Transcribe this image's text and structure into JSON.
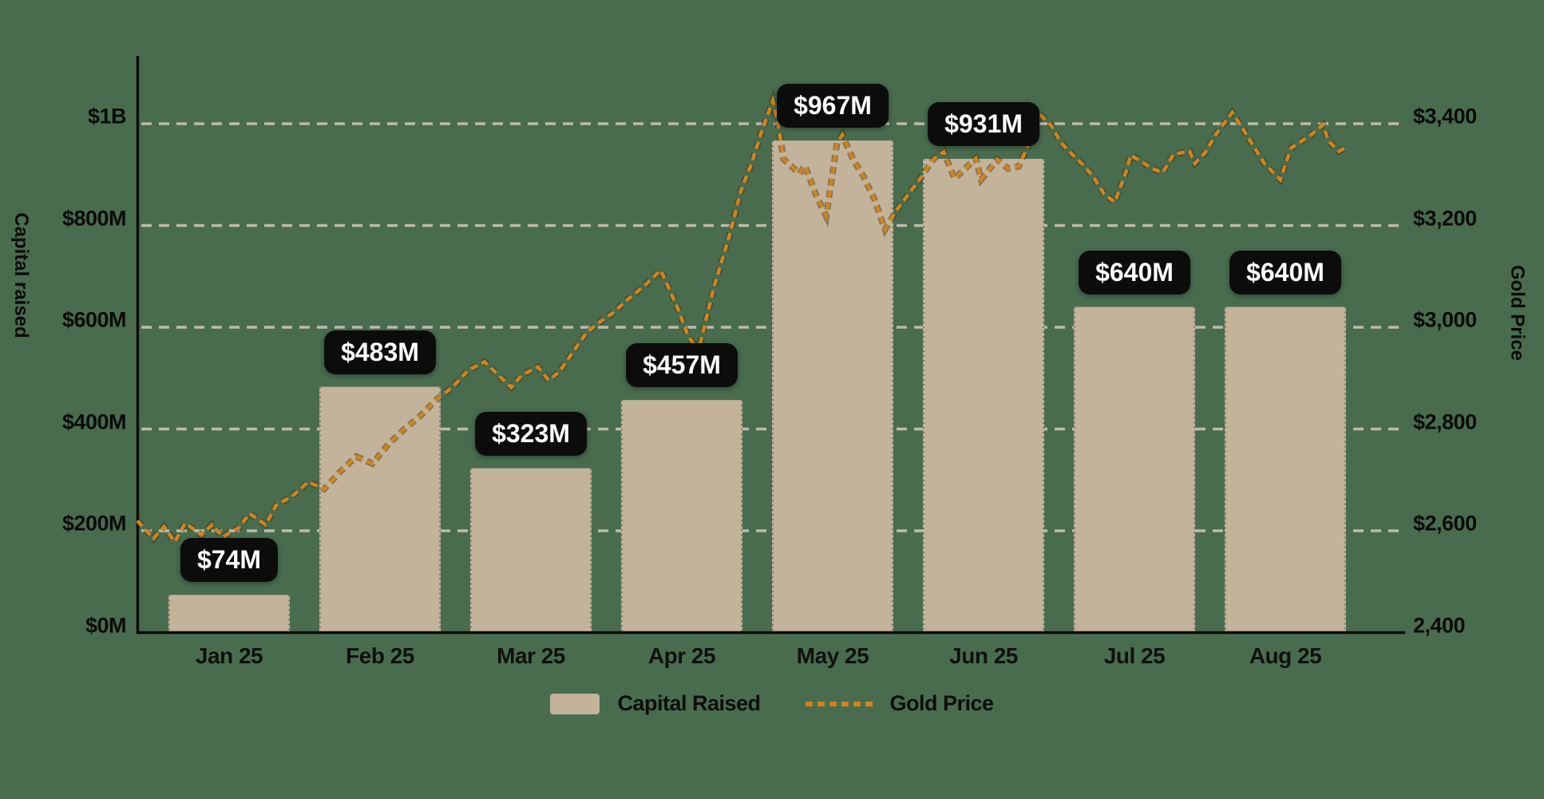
{
  "chart_data": {
    "type": "combo: bar + dotted line, dual y-axes",
    "months": [
      "Jan 25",
      "Feb 25",
      "Mar 25",
      "Apr 25",
      "May 25",
      "Jun 25",
      "Jul 25",
      "Aug 25"
    ],
    "series": [
      {
        "name": "Capital Raised",
        "kind": "bar",
        "axis": "left",
        "values_musd": [
          74,
          483,
          323,
          457,
          967,
          931,
          640,
          640
        ],
        "bar_labels": [
          "$74M",
          "$483M",
          "$323M",
          "$457M",
          "$967M",
          "$931M",
          "$640M",
          "$640M"
        ]
      },
      {
        "name": "Gold Price",
        "kind": "dotted-line",
        "axis": "right",
        "x_unit": "day index from Jan 1 (0-226)",
        "points": [
          [
            0,
            2620
          ],
          [
            3,
            2585
          ],
          [
            5,
            2608
          ],
          [
            7,
            2578
          ],
          [
            9,
            2615
          ],
          [
            12,
            2592
          ],
          [
            14,
            2612
          ],
          [
            16,
            2588
          ],
          [
            19,
            2606
          ],
          [
            21,
            2634
          ],
          [
            24,
            2612
          ],
          [
            26,
            2650
          ],
          [
            29,
            2668
          ],
          [
            32,
            2696
          ],
          [
            35,
            2682
          ],
          [
            38,
            2716
          ],
          [
            41,
            2746
          ],
          [
            44,
            2732
          ],
          [
            47,
            2770
          ],
          [
            50,
            2800
          ],
          [
            53,
            2826
          ],
          [
            56,
            2858
          ],
          [
            59,
            2882
          ],
          [
            62,
            2916
          ],
          [
            65,
            2932
          ],
          [
            67,
            2912
          ],
          [
            70,
            2882
          ],
          [
            72,
            2906
          ],
          [
            75,
            2922
          ],
          [
            77,
            2896
          ],
          [
            79,
            2912
          ],
          [
            82,
            2958
          ],
          [
            84,
            2988
          ],
          [
            86,
            3006
          ],
          [
            89,
            3028
          ],
          [
            92,
            3056
          ],
          [
            95,
            3082
          ],
          [
            98,
            3112
          ],
          [
            101,
            3042
          ],
          [
            103,
            2986
          ],
          [
            105,
            2952
          ],
          [
            108,
            3080
          ],
          [
            111,
            3185
          ],
          [
            113,
            3268
          ],
          [
            115,
            3322
          ],
          [
            117,
            3388
          ],
          [
            119,
            3445
          ],
          [
            120,
            3398
          ],
          [
            121,
            3330
          ],
          [
            124,
            3302
          ],
          [
            125,
            3318
          ],
          [
            127,
            3262
          ],
          [
            129,
            3218
          ],
          [
            131,
            3362
          ],
          [
            132,
            3378
          ],
          [
            134,
            3330
          ],
          [
            136,
            3296
          ],
          [
            138,
            3252
          ],
          [
            140,
            3192
          ],
          [
            142,
            3228
          ],
          [
            144,
            3256
          ],
          [
            147,
            3298
          ],
          [
            149,
            3330
          ],
          [
            151,
            3345
          ],
          [
            153,
            3292
          ],
          [
            155,
            3312
          ],
          [
            157,
            3332
          ],
          [
            158,
            3290
          ],
          [
            161,
            3330
          ],
          [
            163,
            3312
          ],
          [
            165,
            3316
          ],
          [
            167,
            3362
          ],
          [
            169,
            3418
          ],
          [
            171,
            3398
          ],
          [
            173,
            3362
          ],
          [
            175,
            3340
          ],
          [
            177,
            3320
          ],
          [
            179,
            3296
          ],
          [
            181,
            3262
          ],
          [
            183,
            3246
          ],
          [
            185,
            3302
          ],
          [
            186,
            3338
          ],
          [
            188,
            3326
          ],
          [
            190,
            3312
          ],
          [
            192,
            3304
          ],
          [
            194,
            3340
          ],
          [
            197,
            3346
          ],
          [
            198,
            3322
          ],
          [
            200,
            3344
          ],
          [
            202,
            3380
          ],
          [
            205,
            3422
          ],
          [
            207,
            3390
          ],
          [
            209,
            3356
          ],
          [
            211,
            3322
          ],
          [
            214,
            3290
          ],
          [
            216,
            3352
          ],
          [
            218,
            3366
          ],
          [
            220,
            3380
          ],
          [
            222,
            3398
          ],
          [
            223,
            3366
          ],
          [
            225,
            3346
          ],
          [
            226,
            3352
          ]
        ]
      }
    ],
    "left_axis": {
      "label": "Capital raised",
      "range_musd": [
        0,
        1000
      ],
      "ticks": [
        {
          "v": 0,
          "label": "$0M"
        },
        {
          "v": 200,
          "label": "$200M"
        },
        {
          "v": 400,
          "label": "$400M"
        },
        {
          "v": 600,
          "label": "$600M"
        },
        {
          "v": 800,
          "label": "$800M"
        },
        {
          "v": 1000,
          "label": "$1B"
        }
      ]
    },
    "right_axis": {
      "label": "Gold Price",
      "range_usd": [
        2400,
        3400
      ],
      "ticks": [
        {
          "v": 2400,
          "label": "2,400"
        },
        {
          "v": 2600,
          "label": "$2,600"
        },
        {
          "v": 2800,
          "label": "$2,800"
        },
        {
          "v": 3000,
          "label": "$3,000"
        },
        {
          "v": 3200,
          "label": "$3,200"
        },
        {
          "v": 3400,
          "label": "$3,400"
        }
      ]
    },
    "legend": {
      "capital_label": "Capital Raised",
      "gold_label": "Gold Price"
    },
    "grid": "horizontal dashed gridlines at each tick",
    "colors": {
      "background": "#496C4E",
      "bar": "#C2B39A",
      "gold_line": "#CE841F",
      "gold_line_outline": "#33290F",
      "gridline": "#BDBAAE",
      "axis_line": "#0A0A0A",
      "pill_bg": "#0C0C0C",
      "pill_text": "#FFFFFF",
      "axis_text": "#0B0B0B"
    }
  }
}
